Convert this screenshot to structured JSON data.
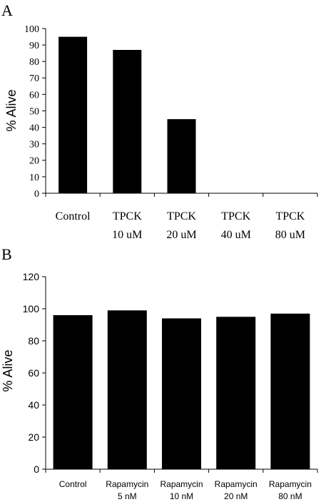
{
  "chart_data": [
    {
      "panel_label": "A",
      "type": "bar",
      "ylabel": "% Alive",
      "ylim": [
        0,
        100
      ],
      "yticks": [
        0,
        10,
        20,
        30,
        40,
        50,
        60,
        70,
        80,
        90,
        100
      ],
      "categories": [
        [
          "Control"
        ],
        [
          "TPCK",
          "10 uM"
        ],
        [
          "TPCK",
          "20 uM"
        ],
        [
          "TPCK",
          "40 uM"
        ],
        [
          "TPCK",
          "80 uM"
        ]
      ],
      "values": [
        95,
        87,
        45,
        0,
        0
      ],
      "bar_color": "#000000",
      "grid": false
    },
    {
      "panel_label": "B",
      "type": "bar",
      "ylabel": "% Alive",
      "ylim": [
        0,
        120
      ],
      "yticks": [
        0,
        20,
        40,
        60,
        80,
        100,
        120
      ],
      "categories": [
        [
          "Control"
        ],
        [
          "Rapamycin",
          "5 nM"
        ],
        [
          "Rapamycin",
          "10 nM"
        ],
        [
          "Rapamycin",
          "20 nM"
        ],
        [
          "Rapamycin",
          "80 nM"
        ]
      ],
      "values": [
        96,
        99,
        94,
        95,
        97
      ],
      "bar_color": "#000000",
      "grid": false
    }
  ]
}
